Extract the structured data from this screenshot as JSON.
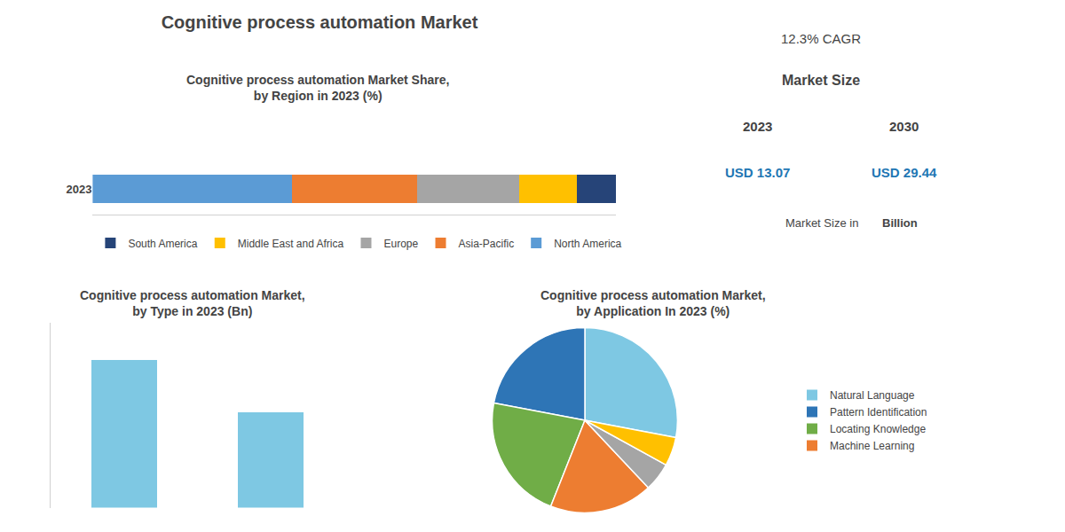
{
  "title": "Cognitive process automation Market",
  "annotations": [
    "12.3% CAGR",
    "Market Size",
    "2023",
    "2030",
    "USD 13.07",
    "USD 29.44",
    "Market Size in",
    "Billion"
  ],
  "chart_data": [
    {
      "type": "bar",
      "orientation": "horizontal",
      "stacked": true,
      "title": "Cognitive process automation Market Share,\nby Region in 2023 (%)",
      "categories": [
        "2023"
      ],
      "series": [
        {
          "name": "North America",
          "color": "#5B9BD5",
          "values": [
            35
          ]
        },
        {
          "name": "Asia-Pacific",
          "color": "#ED7D31",
          "values": [
            22
          ]
        },
        {
          "name": "Europe",
          "color": "#A5A5A5",
          "values": [
            18
          ]
        },
        {
          "name": "Middle East and Africa",
          "color": "#FFC000",
          "values": [
            10
          ]
        },
        {
          "name": "South America",
          "color": "#264478",
          "values": [
            7
          ]
        }
      ],
      "xlim": [
        0,
        92
      ],
      "legend": "bottom",
      "tick_labels": "y",
      "grid": false
    },
    {
      "type": "bar",
      "title": "Cognitive process automation Market,\nby Type in 2023 (Bn)",
      "categories": [
        null,
        null
      ],
      "values": [
        8.5,
        5.5
      ],
      "color": "#7EC8E3",
      "ylim": [
        0,
        10.625
      ],
      "tick_labels": false,
      "grid": false
    },
    {
      "type": "pie",
      "title": "Cognitive process automation Market,\nby Application In 2023 (%)",
      "categories": [
        "Natural Language",
        "Pattern Identification",
        "Locating Knowledge",
        "Machine Learning",
        null,
        null
      ],
      "values": [
        28,
        22,
        22,
        18,
        5,
        5
      ],
      "colors": [
        "#7EC8E3",
        "#2E75B6",
        "#70AD47",
        "#ED7D31",
        "#A5A5A5",
        "#FFC000"
      ],
      "legend": "right"
    }
  ]
}
